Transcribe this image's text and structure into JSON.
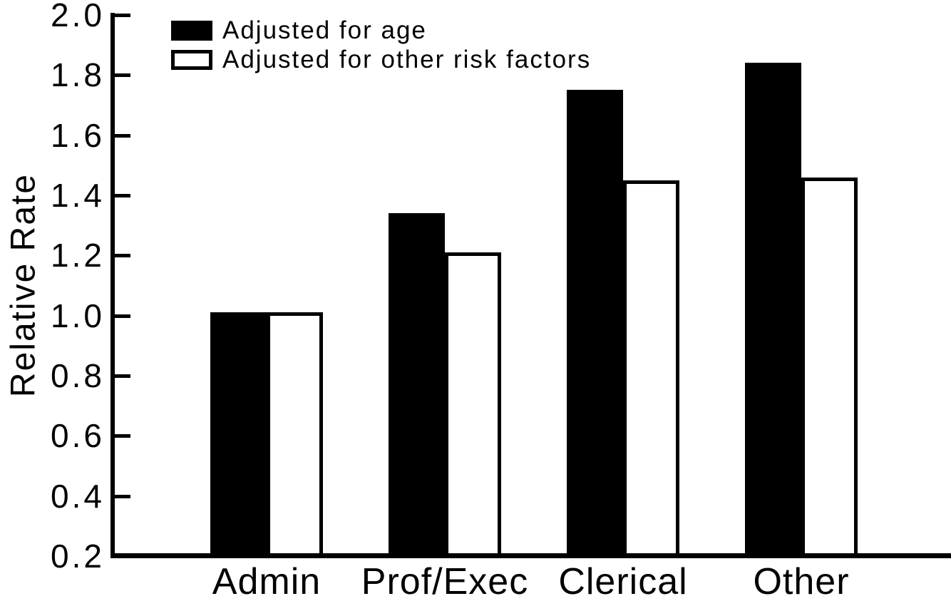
{
  "chart_data": {
    "type": "bar",
    "ylabel": "Relative Rate",
    "categories": [
      "Admin",
      "Prof/Exec",
      "Clerical",
      "Other"
    ],
    "series": [
      {
        "name": "Adjusted for age",
        "fill": "#000000",
        "style": "filled",
        "values": [
          1.01,
          1.34,
          1.75,
          1.84
        ]
      },
      {
        "name": "Adjusted for other risk factors",
        "fill": "#ffffff",
        "style": "open",
        "values": [
          1.01,
          1.21,
          1.45,
          1.46
        ]
      }
    ],
    "ylim": [
      0.2,
      2.0
    ],
    "yticks": [
      "2.0",
      "1.8",
      "1.6",
      "1.4",
      "1.2",
      "1.0",
      "0.8",
      "0.6",
      "0.4",
      "0.2"
    ],
    "grid": false,
    "legend_position": "top-left",
    "colors": {
      "foreground": "#000000",
      "background": "#ffffff"
    }
  }
}
